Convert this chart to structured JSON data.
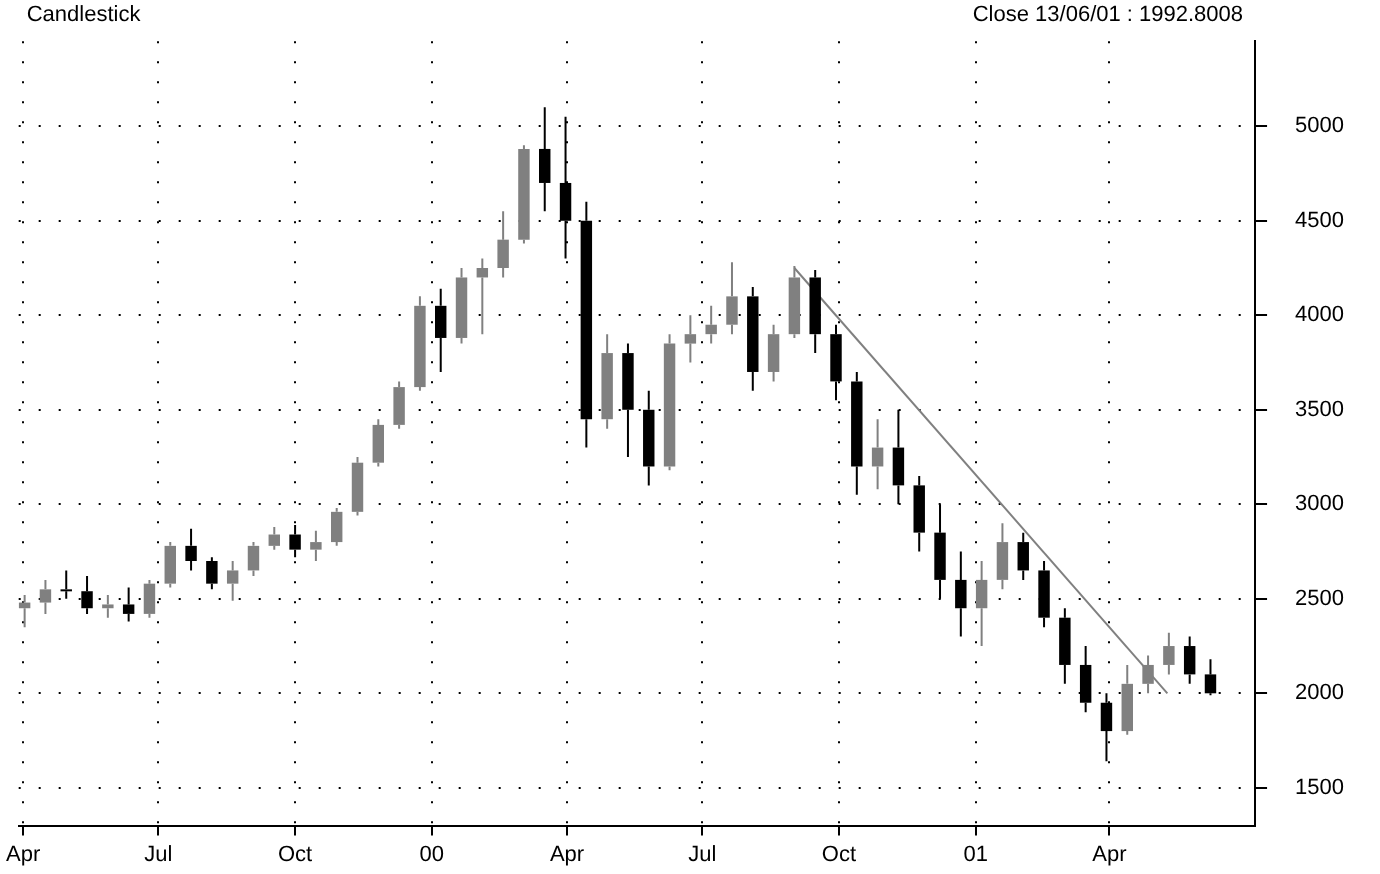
{
  "chart_data": {
    "type": "candlestick",
    "title": "Candlestick",
    "annotations": [
      "Close 13/06/01 : 1992.8008"
    ],
    "x": [
      "1999-04-02",
      "1999-04-16",
      "1999-04-30",
      "1999-05-14",
      "1999-05-28",
      "1999-06-11",
      "1999-06-25",
      "1999-07-09",
      "1999-07-23",
      "1999-08-06",
      "1999-08-20",
      "1999-09-03",
      "1999-09-17",
      "1999-10-01",
      "1999-10-15",
      "1999-10-29",
      "1999-11-12",
      "1999-11-26",
      "1999-12-10",
      "1999-12-24",
      "2000-01-07",
      "2000-01-21",
      "2000-02-04",
      "2000-02-18",
      "2000-03-03",
      "2000-03-17",
      "2000-03-31",
      "2000-04-14",
      "2000-04-28",
      "2000-05-12",
      "2000-05-26",
      "2000-06-09",
      "2000-06-23",
      "2000-07-07",
      "2000-07-21",
      "2000-08-04",
      "2000-08-18",
      "2000-09-01",
      "2000-09-15",
      "2000-09-29",
      "2000-10-13",
      "2000-10-27",
      "2000-11-10",
      "2000-11-24",
      "2000-12-08",
      "2000-12-22",
      "2001-01-05",
      "2001-01-19",
      "2001-02-02",
      "2001-02-16",
      "2001-03-02",
      "2001-03-16",
      "2001-03-30",
      "2001-04-13",
      "2001-04-27",
      "2001-05-11",
      "2001-05-25",
      "2001-06-08"
    ],
    "ohlc": [
      [
        2450,
        2520,
        2350,
        2480
      ],
      [
        2480,
        2600,
        2420,
        2550
      ],
      [
        2550,
        2650,
        2500,
        2540
      ],
      [
        2540,
        2620,
        2420,
        2450
      ],
      [
        2450,
        2520,
        2400,
        2470
      ],
      [
        2470,
        2560,
        2380,
        2420
      ],
      [
        2420,
        2600,
        2400,
        2580
      ],
      [
        2580,
        2800,
        2560,
        2780
      ],
      [
        2780,
        2870,
        2650,
        2700
      ],
      [
        2700,
        2720,
        2550,
        2580
      ],
      [
        2580,
        2700,
        2490,
        2650
      ],
      [
        2650,
        2800,
        2620,
        2780
      ],
      [
        2780,
        2880,
        2760,
        2840
      ],
      [
        2840,
        2890,
        2720,
        2760
      ],
      [
        2760,
        2860,
        2700,
        2800
      ],
      [
        2800,
        2980,
        2780,
        2960
      ],
      [
        2960,
        3250,
        2940,
        3220
      ],
      [
        3220,
        3450,
        3200,
        3420
      ],
      [
        3420,
        3650,
        3400,
        3620
      ],
      [
        3620,
        4100,
        3600,
        4050
      ],
      [
        4050,
        4140,
        3700,
        3880
      ],
      [
        3880,
        4250,
        3850,
        4200
      ],
      [
        4200,
        4300,
        3900,
        4250
      ],
      [
        4250,
        4550,
        4200,
        4400
      ],
      [
        4400,
        4900,
        4380,
        4880
      ],
      [
        4880,
        5100,
        4550,
        4700
      ],
      [
        4700,
        5050,
        4300,
        4500
      ],
      [
        4500,
        4600,
        3300,
        3450
      ],
      [
        3450,
        3900,
        3400,
        3800
      ],
      [
        3800,
        3850,
        3250,
        3500
      ],
      [
        3500,
        3600,
        3100,
        3200
      ],
      [
        3200,
        3900,
        3180,
        3850
      ],
      [
        3850,
        4000,
        3750,
        3900
      ],
      [
        3900,
        4050,
        3850,
        3950
      ],
      [
        3950,
        4280,
        3900,
        4100
      ],
      [
        4100,
        4150,
        3600,
        3700
      ],
      [
        3700,
        3950,
        3650,
        3900
      ],
      [
        3900,
        4260,
        3880,
        4200
      ],
      [
        4200,
        4240,
        3800,
        3900
      ],
      [
        3900,
        3950,
        3550,
        3650
      ],
      [
        3650,
        3700,
        3050,
        3200
      ],
      [
        3200,
        3450,
        3080,
        3300
      ],
      [
        3300,
        3500,
        3000,
        3100
      ],
      [
        3100,
        3150,
        2750,
        2850
      ],
      [
        2850,
        3000,
        2500,
        2600
      ],
      [
        2600,
        2750,
        2300,
        2450
      ],
      [
        2450,
        2700,
        2250,
        2600
      ],
      [
        2600,
        2900,
        2550,
        2800
      ],
      [
        2800,
        2850,
        2600,
        2650
      ],
      [
        2650,
        2700,
        2350,
        2400
      ],
      [
        2400,
        2450,
        2050,
        2150
      ],
      [
        2150,
        2250,
        1900,
        1950
      ],
      [
        1950,
        2000,
        1640,
        1800
      ],
      [
        1800,
        2150,
        1780,
        2050
      ],
      [
        2050,
        2200,
        2000,
        2150
      ],
      [
        2150,
        2320,
        2100,
        2250
      ],
      [
        2250,
        2300,
        2050,
        2100
      ],
      [
        2100,
        2180,
        1990,
        2000
      ]
    ],
    "colors": [
      "#808080",
      "#808080",
      "#000000",
      "#000000",
      "#808080",
      "#000000",
      "#808080",
      "#808080",
      "#000000",
      "#000000",
      "#808080",
      "#808080",
      "#808080",
      "#000000",
      "#808080",
      "#808080",
      "#808080",
      "#808080",
      "#808080",
      "#808080",
      "#000000",
      "#808080",
      "#808080",
      "#808080",
      "#808080",
      "#000000",
      "#000000",
      "#000000",
      "#808080",
      "#000000",
      "#000000",
      "#808080",
      "#808080",
      "#808080",
      "#808080",
      "#000000",
      "#808080",
      "#808080",
      "#000000",
      "#000000",
      "#000000",
      "#808080",
      "#000000",
      "#000000",
      "#000000",
      "#000000",
      "#808080",
      "#808080",
      "#000000",
      "#000000",
      "#000000",
      "#000000",
      "#000000",
      "#808080",
      "#808080",
      "#808080",
      "#000000",
      "#000000"
    ],
    "series": [
      {
        "type": "line",
        "x": [
          "2000-09-01",
          "2001-05-10"
        ],
        "values": [
          4250,
          2000
        ],
        "color": "#808080"
      }
    ],
    "xlim": [
      "1999-03-29",
      "2001-07-08"
    ],
    "xticks": [
      {
        "value": "1999-04-01",
        "label": "Apr"
      },
      {
        "value": "1999-07-01",
        "label": "Jul"
      },
      {
        "value": "1999-10-01",
        "label": "Oct"
      },
      {
        "value": "2000-01-01",
        "label": "00"
      },
      {
        "value": "2000-04-01",
        "label": "Apr"
      },
      {
        "value": "2000-07-01",
        "label": "Jul"
      },
      {
        "value": "2000-10-01",
        "label": "Oct"
      },
      {
        "value": "2001-01-01",
        "label": "01"
      },
      {
        "value": "2001-04-01",
        "label": "Apr"
      }
    ],
    "ylim": [
      1300,
      5450
    ],
    "yticks": [
      1500,
      2000,
      2500,
      3000,
      3500,
      4000,
      4500,
      5000
    ],
    "grid": true,
    "legend": false
  }
}
